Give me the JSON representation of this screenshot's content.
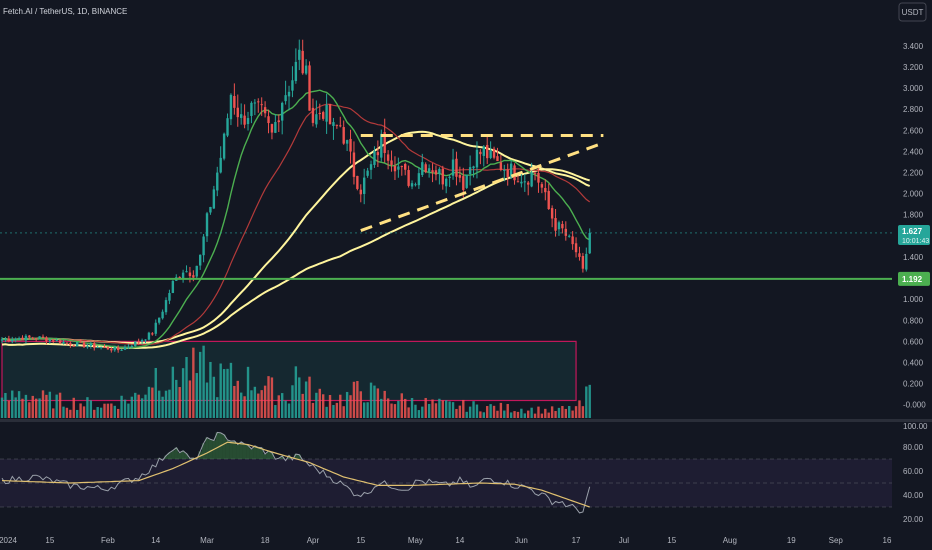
{
  "header": {
    "title": "Fetch.AI / TetherUS, 1D, BINANCE",
    "currency_button": "USDT"
  },
  "price_badge": {
    "price": "1.627",
    "countdown": "10:01:43"
  },
  "support_badge": "1.192",
  "colors": {
    "up": "#26a69a",
    "down": "#ef5350",
    "ma_fast": "#4caf50",
    "ma_mid": "#b33a3a",
    "ma_slow": "#fff59d",
    "support": "#4caf50",
    "triangle": "#ffe082",
    "rsi_line": "#9aa0aa",
    "rsi_ma": "#e0c070",
    "rsi_band": "#7e57c2"
  },
  "chart_data": [
    {
      "type": "candlestick",
      "pair": "Fetch.AI / TetherUS",
      "interval": "1D",
      "exchange": "BINANCE",
      "ylim": [
        -0.05,
        3.55
      ],
      "y_ticks": [
        "3.400",
        "3.200",
        "3.000",
        "2.800",
        "2.600",
        "2.400",
        "2.200",
        "2.000",
        "1.800",
        "1.600",
        "1.400",
        "1.200",
        "1.000",
        "0.800",
        "0.600",
        "0.400",
        "0.200",
        "-0.000"
      ],
      "x_ticks": [
        "2024",
        "15",
        "Feb",
        "14",
        "Mar",
        "18",
        "Apr",
        "15",
        "May",
        "14",
        "Jun",
        "17",
        "Jul",
        "15",
        "Aug",
        "19",
        "Sep",
        "16"
      ],
      "x_tick_days": [
        0,
        14,
        31,
        45,
        60,
        77,
        91,
        105,
        121,
        134,
        152,
        168,
        182,
        196,
        213,
        231,
        244,
        259
      ],
      "last_day": 172,
      "close_anchors": [
        [
          0,
          0.62
        ],
        [
          10,
          0.64
        ],
        [
          20,
          0.58
        ],
        [
          28,
          0.55
        ],
        [
          34,
          0.52
        ],
        [
          40,
          0.6
        ],
        [
          44,
          0.68
        ],
        [
          47,
          0.9
        ],
        [
          50,
          1.15
        ],
        [
          53,
          1.28
        ],
        [
          56,
          1.25
        ],
        [
          58,
          1.4
        ],
        [
          60,
          1.75
        ],
        [
          63,
          2.2
        ],
        [
          65,
          2.5
        ],
        [
          67,
          2.95
        ],
        [
          70,
          2.7
        ],
        [
          73,
          2.8
        ],
        [
          76,
          2.75
        ],
        [
          79,
          2.55
        ],
        [
          82,
          2.9
        ],
        [
          85,
          3.1
        ],
        [
          87,
          3.3
        ],
        [
          89,
          3.1
        ],
        [
          91,
          2.7
        ],
        [
          94,
          2.8
        ],
        [
          97,
          2.6
        ],
        [
          99,
          2.65
        ],
        [
          101,
          2.45
        ],
        [
          103,
          2.2
        ],
        [
          105,
          2.05
        ],
        [
          108,
          2.25
        ],
        [
          111,
          2.5
        ],
        [
          114,
          2.35
        ],
        [
          117,
          2.2
        ],
        [
          120,
          2.1
        ],
        [
          123,
          2.3
        ],
        [
          126,
          2.25
        ],
        [
          129,
          2.15
        ],
        [
          132,
          2.3
        ],
        [
          135,
          2.1
        ],
        [
          138,
          2.35
        ],
        [
          141,
          2.4
        ],
        [
          144,
          2.3
        ],
        [
          147,
          2.25
        ],
        [
          150,
          2.2
        ],
        [
          153,
          2.15
        ],
        [
          156,
          2.2
        ],
        [
          158,
          2.05
        ],
        [
          160,
          1.85
        ],
        [
          162,
          1.7
        ],
        [
          164,
          1.65
        ],
        [
          166,
          1.55
        ],
        [
          168,
          1.45
        ],
        [
          170,
          1.25
        ],
        [
          172,
          1.627
        ]
      ],
      "volume_ylim": [
        0,
        130
      ],
      "volume_anchors": [
        [
          0,
          25
        ],
        [
          6,
          40
        ],
        [
          12,
          30
        ],
        [
          20,
          25
        ],
        [
          30,
          20
        ],
        [
          40,
          35
        ],
        [
          45,
          70
        ],
        [
          48,
          60
        ],
        [
          50,
          55
        ],
        [
          53,
          80
        ],
        [
          58,
          70
        ],
        [
          60,
          90
        ],
        [
          62,
          55
        ],
        [
          65,
          65
        ],
        [
          70,
          55
        ],
        [
          73,
          60
        ],
        [
          77,
          50
        ],
        [
          80,
          40
        ],
        [
          84,
          35
        ],
        [
          86,
          70
        ],
        [
          88,
          55
        ],
        [
          92,
          35
        ],
        [
          100,
          30
        ],
        [
          105,
          45
        ],
        [
          110,
          35
        ],
        [
          120,
          25
        ],
        [
          130,
          20
        ],
        [
          140,
          18
        ],
        [
          150,
          15
        ],
        [
          160,
          12
        ],
        [
          166,
          14
        ],
        [
          170,
          20
        ],
        [
          172,
          48
        ]
      ],
      "support_level": 1.192,
      "current_price": 1.627,
      "moving_averages": [
        "fast",
        "mid",
        "slow-a",
        "slow-b"
      ],
      "triangle": {
        "top": [
          [
            105,
            2.55
          ],
          [
            176,
            2.55
          ]
        ],
        "lower": [
          [
            105,
            1.65
          ],
          [
            176,
            2.48
          ]
        ]
      },
      "volume_profile_box": {
        "from_day": 0,
        "to_day": 168,
        "top_value": 0.6,
        "bottom_value": 0.04
      }
    },
    {
      "type": "line",
      "indicator": "RSI",
      "ylim": [
        15,
        100
      ],
      "y_ticks": [
        "100.00",
        "80.00",
        "60.00",
        "40.00",
        "20.00"
      ],
      "band": [
        30,
        70
      ],
      "midline": 50,
      "rsi_anchors": [
        [
          0,
          52
        ],
        [
          10,
          55
        ],
        [
          20,
          48
        ],
        [
          30,
          45
        ],
        [
          40,
          55
        ],
        [
          45,
          65
        ],
        [
          50,
          80
        ],
        [
          53,
          75
        ],
        [
          56,
          68
        ],
        [
          60,
          85
        ],
        [
          63,
          90
        ],
        [
          66,
          88
        ],
        [
          70,
          82
        ],
        [
          73,
          80
        ],
        [
          76,
          78
        ],
        [
          80,
          72
        ],
        [
          83,
          70
        ],
        [
          87,
          72
        ],
        [
          90,
          65
        ],
        [
          93,
          60
        ],
        [
          96,
          55
        ],
        [
          100,
          48
        ],
        [
          103,
          42
        ],
        [
          106,
          40
        ],
        [
          110,
          50
        ],
        [
          114,
          48
        ],
        [
          118,
          45
        ],
        [
          122,
          52
        ],
        [
          126,
          50
        ],
        [
          130,
          48
        ],
        [
          134,
          52
        ],
        [
          138,
          46
        ],
        [
          142,
          54
        ],
        [
          146,
          52
        ],
        [
          150,
          48
        ],
        [
          154,
          46
        ],
        [
          158,
          40
        ],
        [
          161,
          35
        ],
        [
          164,
          34
        ],
        [
          166,
          30
        ],
        [
          168,
          29
        ],
        [
          170,
          26
        ],
        [
          172,
          44
        ]
      ],
      "rsi_ma_anchors": [
        [
          0,
          52
        ],
        [
          20,
          50
        ],
        [
          40,
          52
        ],
        [
          50,
          62
        ],
        [
          60,
          75
        ],
        [
          66,
          84
        ],
        [
          72,
          82
        ],
        [
          80,
          75
        ],
        [
          90,
          67
        ],
        [
          100,
          55
        ],
        [
          110,
          48
        ],
        [
          120,
          48
        ],
        [
          130,
          49
        ],
        [
          140,
          50
        ],
        [
          150,
          49
        ],
        [
          158,
          44
        ],
        [
          164,
          38
        ],
        [
          168,
          34
        ],
        [
          172,
          30
        ]
      ]
    }
  ]
}
